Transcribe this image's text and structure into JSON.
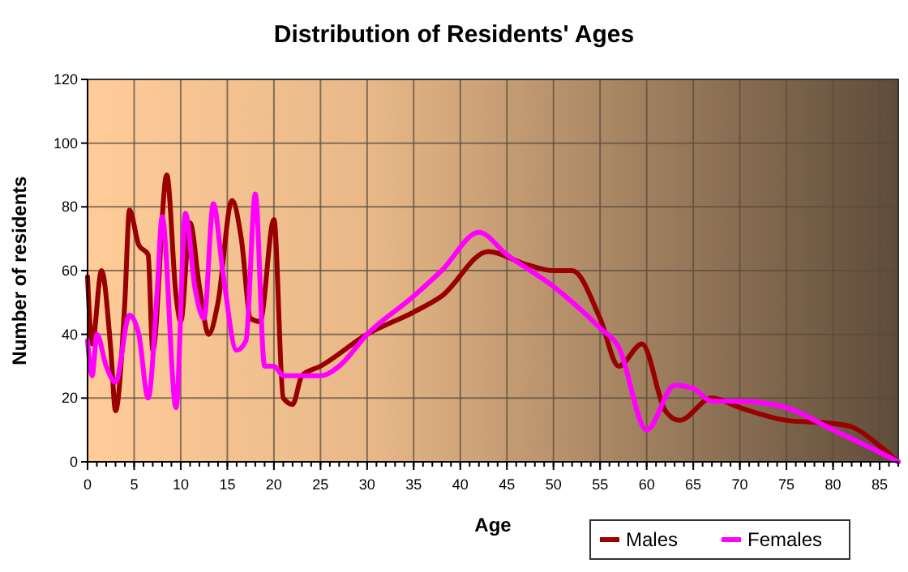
{
  "chart_data": {
    "type": "line",
    "title": "Distribution of Residents' Ages",
    "xlabel": "Age",
    "ylabel": "Number of residents",
    "xlim": [
      0,
      87
    ],
    "xticks": [
      0,
      5,
      10,
      15,
      20,
      25,
      30,
      35,
      40,
      45,
      50,
      55,
      60,
      65,
      70,
      75,
      80,
      85
    ],
    "ylim": [
      0,
      120
    ],
    "yticks": [
      0,
      20,
      40,
      60,
      80,
      100,
      120
    ],
    "grid": true,
    "legend": "bottom right",
    "marker": "none",
    "line_style": "solid",
    "series": [
      {
        "name": "Males",
        "color": "#990000",
        "x": [
          0,
          0.5,
          1.5,
          2.5,
          3,
          4,
          4.5,
          5.5,
          6.5,
          7,
          8.5,
          9.5,
          10,
          11,
          12,
          13,
          14,
          15.5,
          16.5,
          17.5,
          18.5,
          20,
          21,
          22,
          23,
          25,
          30,
          35,
          38,
          43,
          47,
          50,
          52,
          55,
          57,
          59.5,
          62,
          63.5,
          67,
          70,
          75,
          80,
          82,
          85,
          87
        ],
        "values": [
          58,
          37,
          60,
          35,
          16,
          50,
          79,
          68,
          65,
          35,
          90,
          52,
          44,
          75,
          55,
          40,
          50,
          82,
          70,
          45,
          44,
          76,
          20,
          18,
          27,
          30,
          40,
          47,
          52,
          66,
          62,
          60,
          60,
          45,
          30,
          37,
          16,
          13,
          20,
          17,
          13,
          12,
          11,
          5,
          0
        ]
      },
      {
        "name": "Females",
        "color": "#ff00ff",
        "x": [
          0,
          0.5,
          1,
          2,
          3,
          4.5,
          5.5,
          6.5,
          7.5,
          8,
          9.5,
          10.5,
          11.5,
          12.5,
          13.5,
          14.5,
          16,
          17,
          18,
          19,
          20,
          21,
          23,
          25,
          27,
          30,
          35,
          38,
          42,
          45,
          50,
          55,
          57,
          60,
          63,
          65,
          67,
          70,
          75,
          80,
          85,
          87
        ],
        "values": [
          38,
          27,
          40,
          30,
          25,
          46,
          40,
          20,
          55,
          77,
          17,
          78,
          55,
          45,
          81,
          60,
          35,
          38,
          84,
          30,
          30,
          27,
          27,
          27,
          30,
          40,
          52,
          60,
          72,
          65,
          55,
          42,
          36,
          10,
          24,
          23,
          19,
          19,
          17,
          10,
          3,
          0
        ]
      }
    ]
  }
}
